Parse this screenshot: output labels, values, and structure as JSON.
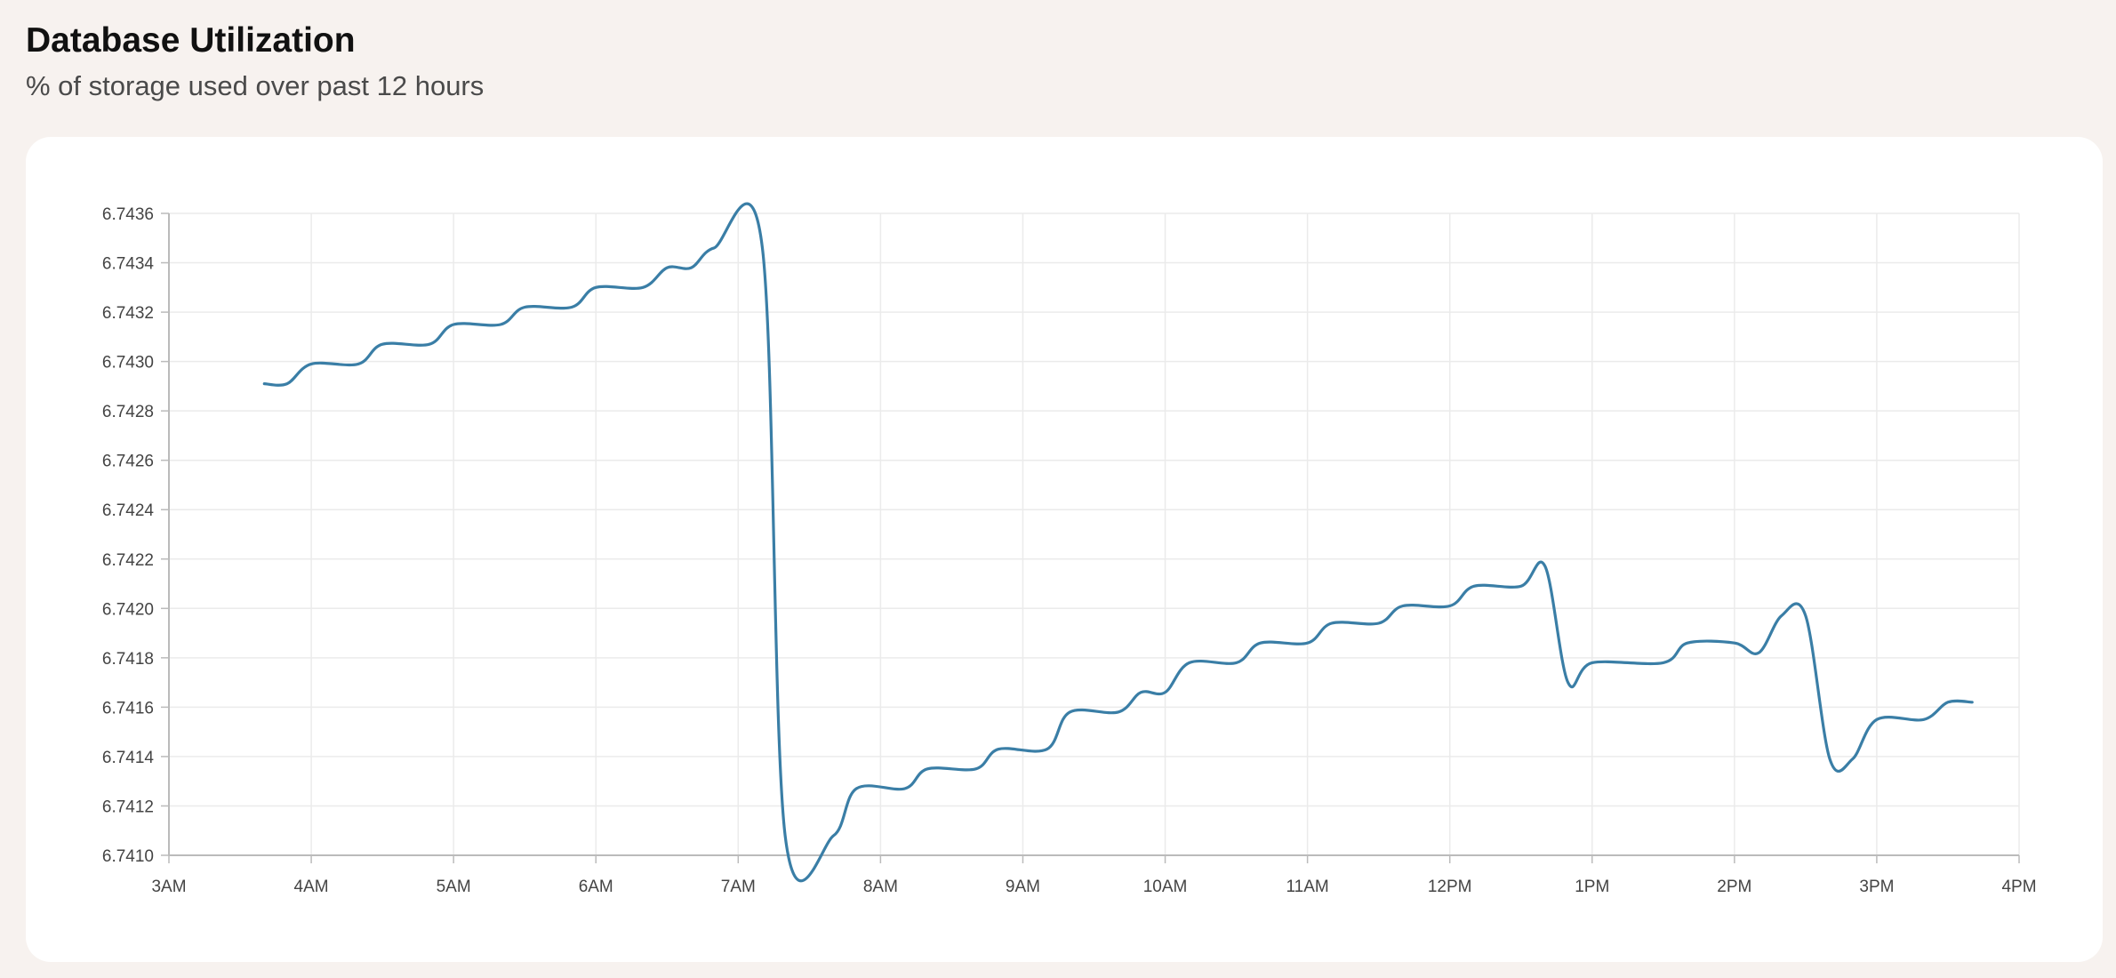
{
  "header": {
    "title": "Database Utilization",
    "subtitle": "% of storage used over past 12 hours"
  },
  "chart_data": {
    "type": "line",
    "title": "Database Utilization",
    "subtitle": "% of storage used over past 12 hours",
    "xlabel": "",
    "ylabel": "",
    "grid": true,
    "legend": "none",
    "line_color": "#3a7ea6",
    "grid_color": "#ebebeb",
    "axis_color": "#bbbbbb",
    "x_domain_hours": [
      3,
      16
    ],
    "x_ticks": [
      "3AM",
      "4AM",
      "5AM",
      "6AM",
      "7AM",
      "8AM",
      "9AM",
      "10AM",
      "11AM",
      "12PM",
      "1PM",
      "2PM",
      "3PM",
      "4PM"
    ],
    "ylim": [
      6.741,
      6.7436
    ],
    "y_ticks": [
      "6.7410",
      "6.7412",
      "6.7414",
      "6.7416",
      "6.7418",
      "6.7420",
      "6.7422",
      "6.7424",
      "6.7426",
      "6.7428",
      "6.7430",
      "6.7432",
      "6.7434",
      "6.7436"
    ],
    "series": [
      {
        "name": "% of storage used",
        "x": [
          3.67,
          3.83,
          4.0,
          4.33,
          4.5,
          4.83,
          5.0,
          5.33,
          5.5,
          5.83,
          6.0,
          6.33,
          6.5,
          6.67,
          6.83,
          7.17,
          7.33,
          7.67,
          7.83,
          8.17,
          8.33,
          8.67,
          8.83,
          9.17,
          9.33,
          9.67,
          9.83,
          10.0,
          10.17,
          10.5,
          10.67,
          11.0,
          11.17,
          11.5,
          11.67,
          12.0,
          12.17,
          12.5,
          12.67,
          12.83,
          13.0,
          13.5,
          13.67,
          14.0,
          14.17,
          14.33,
          14.5,
          14.67,
          14.83,
          15.0,
          15.33,
          15.5,
          15.67
        ],
        "values": [
          6.74291,
          6.74291,
          6.74299,
          6.74299,
          6.74307,
          6.74307,
          6.74315,
          6.74315,
          6.74322,
          6.74322,
          6.7433,
          6.7433,
          6.74338,
          6.74338,
          6.74346,
          6.74346,
          6.74108,
          6.74108,
          6.74127,
          6.74127,
          6.74135,
          6.74135,
          6.74143,
          6.74143,
          6.74158,
          6.74158,
          6.74166,
          6.74166,
          6.74178,
          6.74178,
          6.74186,
          6.74186,
          6.74194,
          6.74194,
          6.74201,
          6.74201,
          6.74209,
          6.74209,
          6.74217,
          6.7417,
          6.74178,
          6.74178,
          6.74186,
          6.74186,
          6.74182,
          6.74197,
          6.74197,
          6.74139,
          6.74139,
          6.74155,
          6.74155,
          6.74162,
          6.74162
        ]
      }
    ]
  }
}
